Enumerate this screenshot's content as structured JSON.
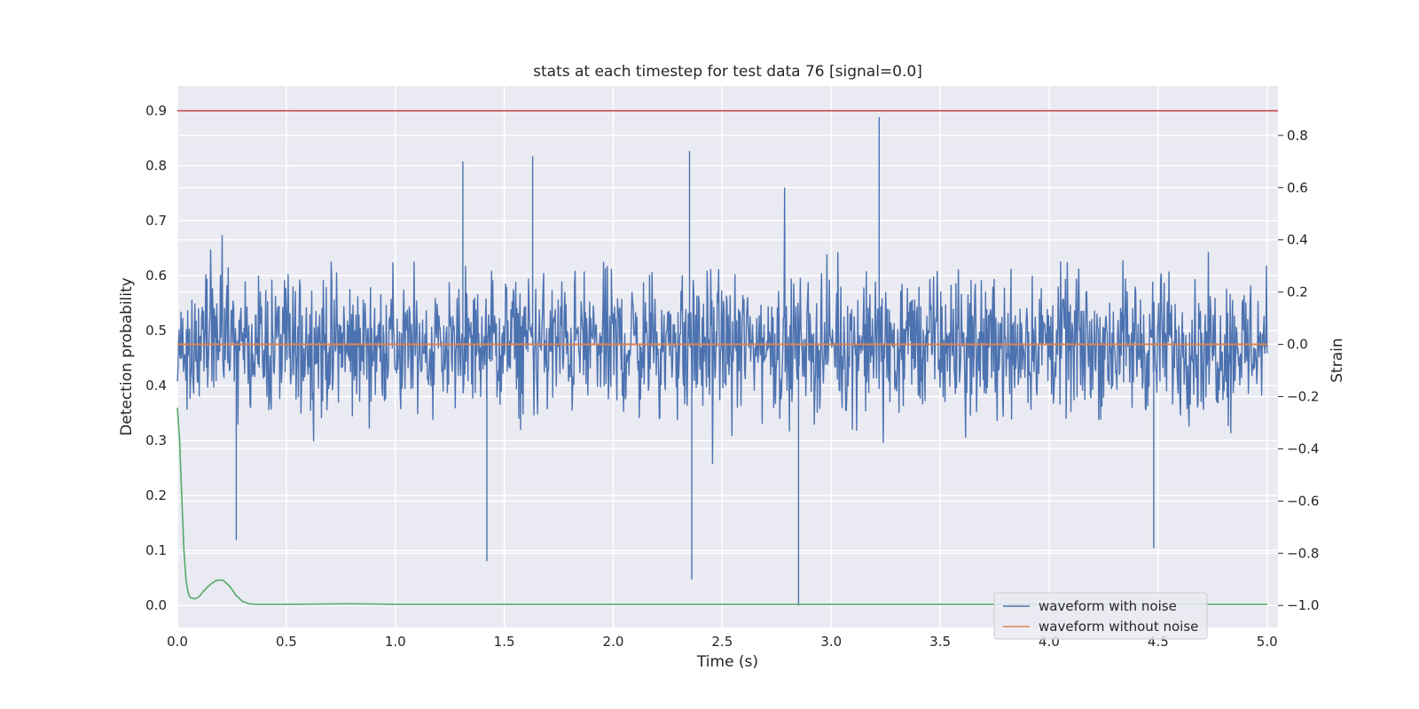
{
  "chart_data": {
    "type": "line",
    "title": "stats at each timestep for test data 76 [signal=0.0]",
    "xlabel": "Time (s)",
    "ylabel": "Detection probability",
    "y2label": "Strain",
    "xlim": [
      0.0,
      5.05
    ],
    "ylim": [
      -0.04,
      0.945
    ],
    "y2lim": [
      -1.0,
      1.0
    ],
    "xticks": [
      "0.0",
      "0.5",
      "1.0",
      "1.5",
      "2.0",
      "2.5",
      "3.0",
      "3.5",
      "4.0",
      "4.5",
      "5.0"
    ],
    "yticks": [
      "0.0",
      "0.1",
      "0.2",
      "0.3",
      "0.4",
      "0.5",
      "0.6",
      "0.7",
      "0.8",
      "0.9"
    ],
    "y2ticks": [
      "−1.0",
      "−0.8",
      "−0.6",
      "−0.4",
      "−0.2",
      "0.0",
      "0.2",
      "0.4",
      "0.6",
      "0.8"
    ],
    "grid": true,
    "legend_position": "bottom-right",
    "series": [
      {
        "name": "waveform with noise",
        "axis": "right",
        "color": "#4c72b0",
        "noise_band": {
          "typical_min": -0.3,
          "typical_max": 0.3
        },
        "peaks": [
          {
            "x": 3.22,
            "y": 0.87
          },
          {
            "x": 2.35,
            "y": 0.74
          },
          {
            "x": 1.63,
            "y": 0.72
          },
          {
            "x": 1.31,
            "y": 0.7
          },
          {
            "x": 2.85,
            "y": -1.0
          },
          {
            "x": 2.36,
            "y": -0.9
          },
          {
            "x": 1.42,
            "y": -0.83
          },
          {
            "x": 4.48,
            "y": -0.78
          },
          {
            "x": 0.27,
            "y": -0.75
          }
        ]
      },
      {
        "name": "waveform without noise",
        "axis": "right",
        "color": "#dd8452",
        "x": [
          0.0,
          5.0
        ],
        "y": [
          0.0,
          0.0
        ]
      },
      {
        "axis": "left",
        "color": "#55a868",
        "x": [
          0.0,
          0.01,
          0.02,
          0.03,
          0.04,
          0.05,
          0.06,
          0.08,
          0.1,
          0.12,
          0.15,
          0.18,
          0.21,
          0.24,
          0.27,
          0.3,
          0.33,
          0.36,
          0.4,
          0.5,
          0.8,
          1.0,
          1.5,
          2.0,
          3.0,
          4.0,
          5.0
        ],
        "y": [
          0.36,
          0.3,
          0.2,
          0.1,
          0.045,
          0.022,
          0.014,
          0.012,
          0.016,
          0.026,
          0.038,
          0.046,
          0.046,
          0.035,
          0.018,
          0.007,
          0.003,
          0.002,
          0.002,
          0.002,
          0.003,
          0.002,
          0.002,
          0.002,
          0.002,
          0.002,
          0.002
        ]
      },
      {
        "axis": "left",
        "color": "#c44e52",
        "x": [
          0.0,
          5.05
        ],
        "y": [
          0.9,
          0.9
        ]
      }
    ]
  }
}
